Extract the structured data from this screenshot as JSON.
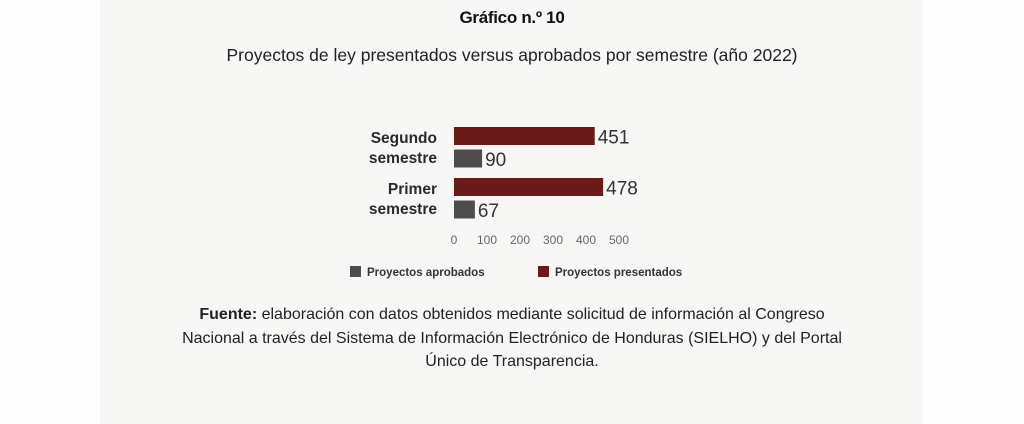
{
  "chart_data": {
    "type": "bar",
    "orientation": "horizontal",
    "title": "Gráfico n.º 10",
    "subtitle": "Proyectos de ley presentados versus aprobados por semestre (año 2022)",
    "categories": [
      {
        "line1": "Segundo",
        "line2": "semestre"
      },
      {
        "line1": "Primer",
        "line2": "semestre"
      }
    ],
    "series": [
      {
        "name": "Proyectos presentados",
        "color": "#6b1a1a",
        "values": [
          451,
          478
        ]
      },
      {
        "name": "Proyectos aprobados",
        "color": "#4d4d4d",
        "values": [
          90,
          67
        ]
      }
    ],
    "xticks": [
      "0",
      "100",
      "200",
      "300",
      "400",
      "500"
    ],
    "xlim": [
      0,
      500
    ],
    "legend": {
      "placement": "bottom",
      "items": [
        "Proyectos aprobados",
        "Proyectos presentados"
      ]
    },
    "grid": false
  },
  "source": {
    "label": "Fuente:",
    "lines": [
      " elaboración con datos obtenidos mediante solicitud de información al Congreso",
      "Nacional a través del Sistema de Información Electrónico de Honduras (SIELHO) y del Portal",
      "Único de Transparencia."
    ]
  }
}
